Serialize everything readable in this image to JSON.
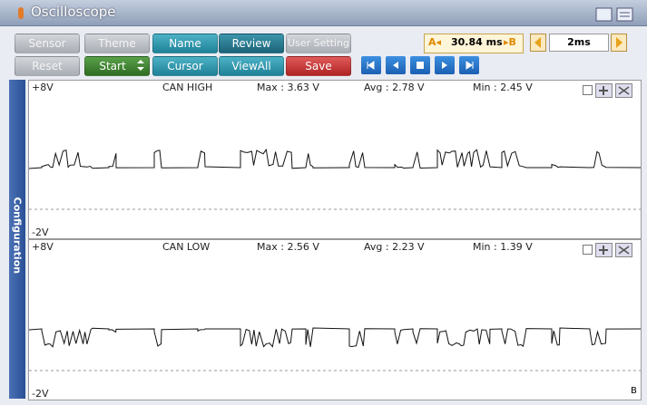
{
  "title": "Oscilloscope",
  "buttons": {
    "row1": [
      "Sensor",
      "Theme",
      "Name",
      "Review",
      "User Setting"
    ],
    "row2": [
      "Reset",
      "Start",
      "Cursor",
      "ViewAll",
      "Save"
    ]
  },
  "cursor": {
    "a": "A◂",
    "value": "30.84 ms",
    "b": "▸B"
  },
  "timebase": "2ms",
  "side_tab": "Configuration",
  "channels": [
    {
      "top": "+8V",
      "name": "CAN HIGH",
      "max": "Max : 3.63 V",
      "avg": "Avg : 2.78 V",
      "min": "Min : 2.45 V",
      "bottom": "-2V"
    },
    {
      "top": "+8V",
      "name": "CAN LOW",
      "max": "Max : 2.56 V",
      "avg": "Avg : 2.23 V",
      "min": "Min : 1.39 V",
      "bottom": "-2V"
    }
  ],
  "corner": "B"
}
